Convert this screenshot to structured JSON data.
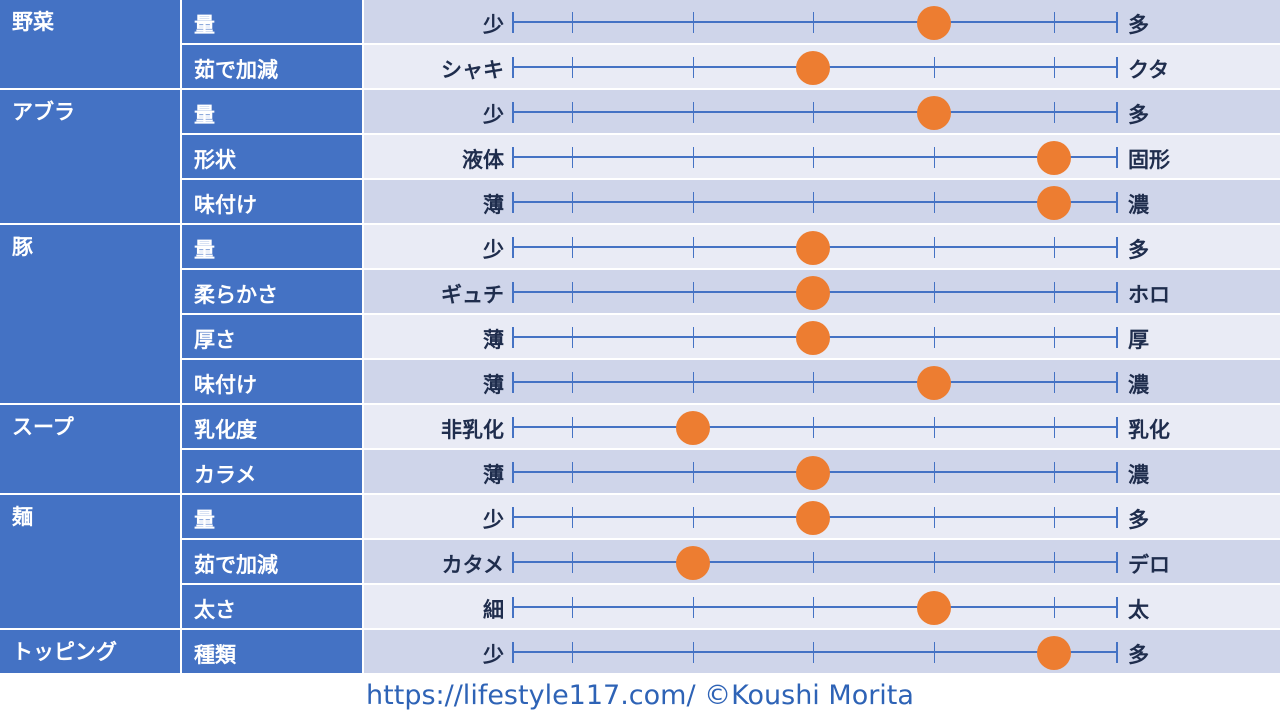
{
  "chart_data": {
    "type": "table",
    "scale": {
      "min": 1,
      "max": 5,
      "steps": 5
    },
    "groups": [
      {
        "name": "野菜",
        "rows": [
          {
            "attr": "量",
            "low": "少",
            "high": "多",
            "value": 4
          },
          {
            "attr": "茹で加減",
            "low": "シャキ",
            "high": "クタ",
            "value": 3
          }
        ]
      },
      {
        "name": "アブラ",
        "rows": [
          {
            "attr": "量",
            "low": "少",
            "high": "多",
            "value": 4
          },
          {
            "attr": "形状",
            "low": "液体",
            "high": "固形",
            "value": 5
          },
          {
            "attr": "味付け",
            "low": "薄",
            "high": "濃",
            "value": 5
          }
        ]
      },
      {
        "name": "豚",
        "rows": [
          {
            "attr": "量",
            "low": "少",
            "high": "多",
            "value": 3
          },
          {
            "attr": "柔らかさ",
            "low": "ギュチ",
            "high": "ホロ",
            "value": 3
          },
          {
            "attr": "厚さ",
            "low": "薄",
            "high": "厚",
            "value": 3
          },
          {
            "attr": "味付け",
            "low": "薄",
            "high": "濃",
            "value": 4
          }
        ]
      },
      {
        "name": "スープ",
        "rows": [
          {
            "attr": "乳化度",
            "low": "非乳化",
            "high": "乳化",
            "value": 2
          },
          {
            "attr": "カラメ",
            "low": "薄",
            "high": "濃",
            "value": 3
          }
        ]
      },
      {
        "name": "麺",
        "rows": [
          {
            "attr": "量",
            "low": "少",
            "high": "多",
            "value": 3
          },
          {
            "attr": "茹で加減",
            "low": "カタメ",
            "high": "デロ",
            "value": 2
          },
          {
            "attr": "太さ",
            "low": "細",
            "high": "太",
            "value": 4
          }
        ]
      },
      {
        "name": "トッピング",
        "rows": [
          {
            "attr": "種類",
            "low": "少",
            "high": "多",
            "value": 5
          }
        ]
      }
    ],
    "colors": {
      "category_bg": "#4472c4",
      "row_odd": "#cfd5ea",
      "row_even": "#e9ebf5",
      "axis": "#4472c4",
      "marker": "#ed7d31",
      "label_text": "#1f2d4d"
    }
  },
  "footer": {
    "text": "https://lifestyle117.com/  ©Koushi Morita",
    "color": "#2e63b6"
  }
}
